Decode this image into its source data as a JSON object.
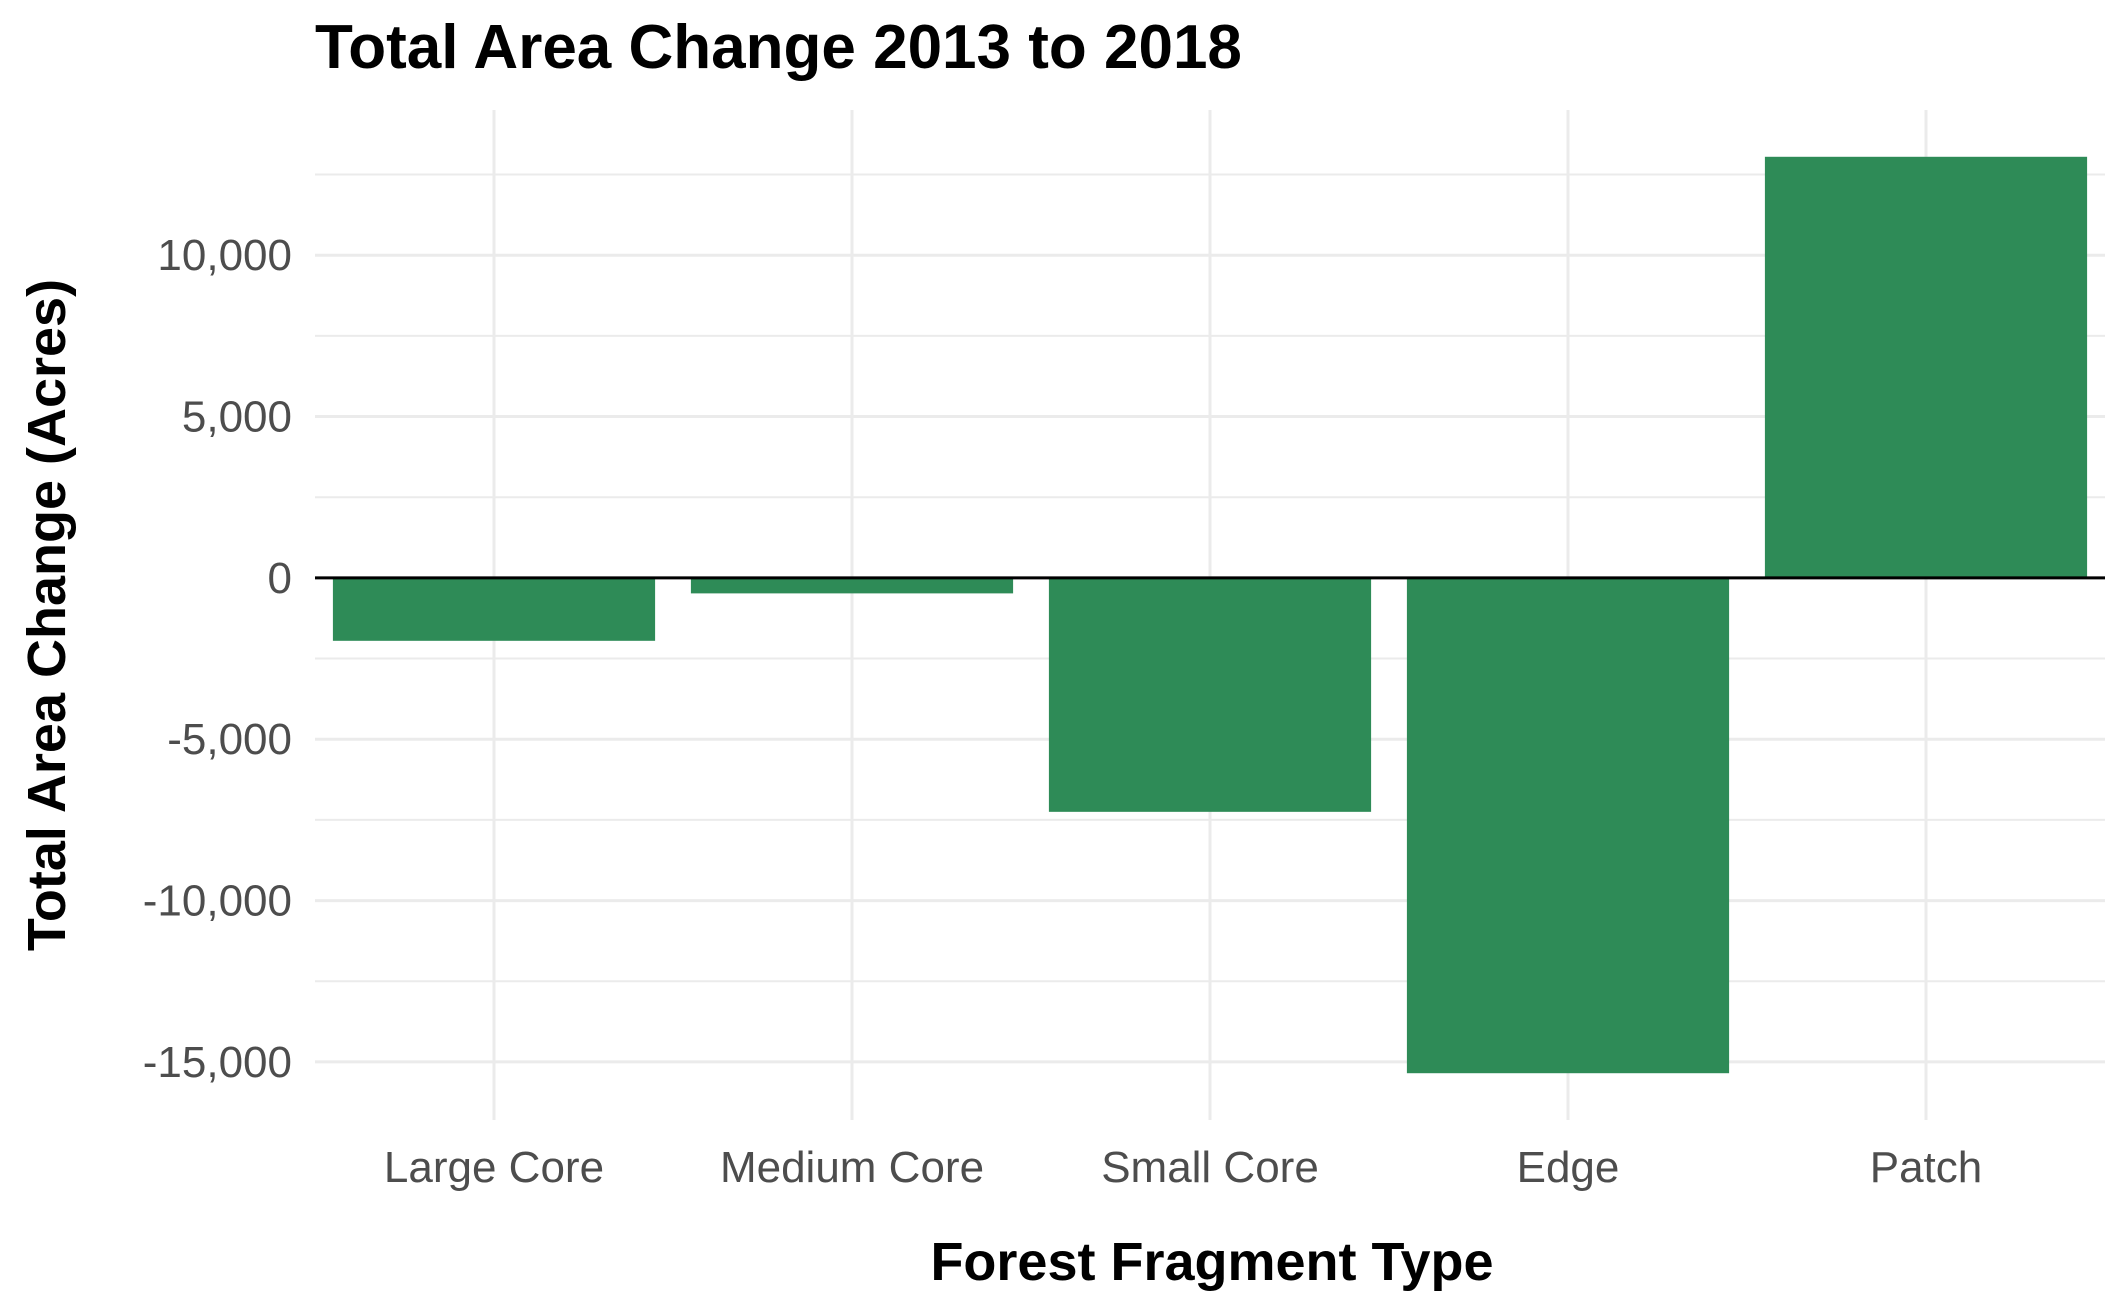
{
  "chart_data": {
    "type": "bar",
    "title": "Total Area Change 2013 to 2018",
    "xlabel": "Forest Fragment Type",
    "ylabel": "Total Area Change (Acres)",
    "categories": [
      "Large Core",
      "Medium Core",
      "Small Core",
      "Edge",
      "Patch"
    ],
    "values": [
      -1950,
      -480,
      -7250,
      -15350,
      13050
    ],
    "yticks": [
      10000,
      5000,
      0,
      -5000,
      -10000,
      -15000
    ],
    "ytick_labels": [
      "10,000",
      "5,000",
      "0",
      "-5,000",
      "-10,000",
      "-15,000"
    ],
    "ylim": [
      -16800,
      14500
    ],
    "grid": true,
    "legend": "none",
    "bar_color": "#2e8b57",
    "grid_color": "#ebebeb",
    "zero_line_color": "#000000"
  }
}
